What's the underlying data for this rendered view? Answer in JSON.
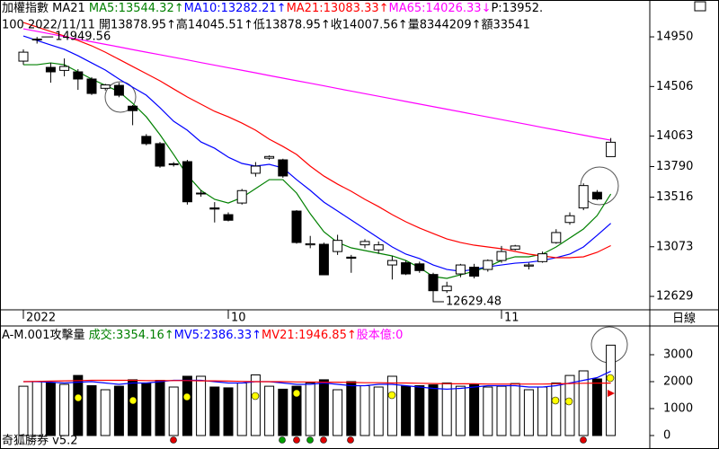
{
  "chart_data": [
    {
      "type": "candlestick",
      "header": [
        {
          "text": "加權指數 MA21 ",
          "color": "#000000"
        },
        {
          "text": "MA5:13544.32↑",
          "color": "#008000"
        },
        {
          "text": "MA10:13282.21↑",
          "color": "#0000ff"
        },
        {
          "text": "MA21:13083.33↑",
          "color": "#ff0000"
        },
        {
          "text": "MA65:14026.33↓",
          "color": "#ff00ff"
        },
        {
          "text": "P:13952.",
          "color": "#000000"
        }
      ],
      "subheader": "100 2022/11/11 開13878.95↑高14045.51↑低13878.95↑收14007.56↑量8344209↑額33541",
      "period_label": "日線",
      "categories": [
        "2022",
        null,
        null,
        null,
        null,
        null,
        null,
        null,
        null,
        null,
        null,
        null,
        null,
        null,
        null,
        "10",
        null,
        null,
        null,
        null,
        null,
        null,
        null,
        null,
        null,
        null,
        null,
        null,
        null,
        null,
        null,
        null,
        null,
        null,
        null,
        "11",
        null,
        null,
        null,
        null,
        null,
        null,
        null,
        null
      ],
      "open": [
        14733,
        14925,
        14677,
        14650,
        14637,
        14573,
        14490,
        14516,
        14330,
        14060,
        13995,
        13810,
        13834,
        13550,
        13420,
        13360,
        13464,
        13730,
        13865,
        13850,
        13392,
        13090,
        13095,
        13030,
        12980,
        13090,
        13045,
        12910,
        12930,
        12920,
        12825,
        12680,
        12830,
        12890,
        12870,
        12950,
        13050,
        12900,
        12940,
        13110,
        13290,
        13420,
        13560,
        13878.95
      ],
      "high": [
        14838,
        14949.56,
        14717,
        14757,
        14661,
        14590,
        14530,
        14540,
        14340,
        14080,
        14010,
        13830,
        13850,
        13580,
        13472,
        13380,
        13590,
        13830,
        13890,
        13860,
        13400,
        13170,
        13110,
        13180,
        13000,
        13140,
        13120,
        12990,
        12950,
        12940,
        12840,
        12760,
        12920,
        12920,
        12960,
        13080,
        13090,
        12930,
        13030,
        13230,
        13380,
        13640,
        13580,
        14045.51
      ],
      "low": [
        14701,
        14890,
        14540,
        14597,
        14476,
        14430,
        14470,
        14410,
        14160,
        13980,
        13780,
        13790,
        13450,
        13520,
        13290,
        13300,
        13450,
        13700,
        13850,
        13690,
        13100,
        13060,
        12820,
        13000,
        12840,
        13060,
        13010,
        12780,
        12820,
        12840,
        12629.48,
        12660,
        12800,
        12790,
        12850,
        12930,
        13040,
        12870,
        12930,
        13100,
        13270,
        13400,
        13490,
        13878.95
      ],
      "close": [
        14813,
        14930,
        14637,
        14685,
        14573,
        14444,
        14520,
        14428,
        14290,
        13995,
        13794,
        13815,
        13475,
        13553,
        13410,
        13310,
        13575,
        13794,
        13880,
        13706,
        13111,
        13100,
        12822,
        13130,
        12970,
        13120,
        13090,
        12950,
        12830,
        12860,
        12680,
        12720,
        12910,
        12810,
        12950,
        13030,
        13080,
        12910,
        13010,
        13200,
        13350,
        13620,
        13500,
        14007.56
      ],
      "up_color": "#ffffff",
      "down_color": "#000000",
      "series": [
        {
          "color": "#008000",
          "values": [
            14701,
            14701,
            14717,
            14701,
            14637,
            14573,
            14516,
            14460,
            14356,
            14235,
            14075,
            13898,
            13713,
            13577,
            13497,
            13464,
            13513,
            13593,
            13673,
            13673,
            13553,
            13368,
            13207,
            13111,
            13063,
            13039,
            13015,
            12991,
            12950,
            12886,
            12806,
            12790,
            12822,
            12854,
            12894,
            12950,
            12983,
            12983,
            13007,
            13071,
            13151,
            13232,
            13352,
            13544.32
          ]
        },
        {
          "color": "#0000ff",
          "values": [
            14958,
            14918,
            14878,
            14838,
            14781,
            14717,
            14653,
            14573,
            14500,
            14428,
            14316,
            14195,
            14115,
            14010,
            13954,
            13874,
            13818,
            13794,
            13810,
            13778,
            13673,
            13577,
            13472,
            13392,
            13312,
            13232,
            13151,
            13071,
            13007,
            12967,
            12910,
            12870,
            12854,
            12870,
            12894,
            12910,
            12926,
            12934,
            12950,
            12975,
            13007,
            13071,
            13175,
            13282.21
          ]
        },
        {
          "color": "#ff0000",
          "values": [
            15078,
            15038,
            14998,
            14958,
            14918,
            14870,
            14813,
            14749,
            14685,
            14621,
            14557,
            14484,
            14412,
            14348,
            14284,
            14235,
            14179,
            14115,
            14035,
            13970,
            13898,
            13794,
            13705,
            13633,
            13569,
            13497,
            13432,
            13360,
            13296,
            13240,
            13191,
            13143,
            13111,
            13087,
            13071,
            13055,
            13031,
            13007,
            12991,
            12975,
            12975,
            12983,
            13023,
            13083.33
          ]
        },
        {
          "color": "#ff00ff",
          "values": [
            15022,
            14999,
            14976,
            14952,
            14929,
            14906,
            14883,
            14860,
            14836,
            14813,
            14790,
            14767,
            14744,
            14720,
            14697,
            14674,
            14651,
            14628,
            14604,
            14581,
            14558,
            14535,
            14512,
            14488,
            14465,
            14442,
            14419,
            14396,
            14372,
            14349,
            14326,
            14303,
            14280,
            14256,
            14233,
            14210,
            14187,
            14164,
            14140,
            14117,
            14094,
            14071,
            14048,
            14026.33
          ]
        }
      ],
      "annotations": [
        "14949.56",
        "12629.48"
      ],
      "ylim": [
        12509,
        15119
      ],
      "yticks": [
        14950,
        14506,
        14063,
        13790,
        13516,
        13073,
        12629
      ]
    },
    {
      "type": "bar",
      "header": [
        {
          "text": "A-M.001攻擊量 ",
          "color": "#000000"
        },
        {
          "text": "成交:3354.16↑",
          "color": "#008000"
        },
        {
          "text": "MV5:2386.33↑",
          "color": "#0000ff"
        },
        {
          "text": "MV21:1946.85↑",
          "color": "#ff0000"
        },
        {
          "text": "股本億:0",
          "color": "#ff00ff"
        }
      ],
      "values": [
        1830,
        2000,
        1950,
        1900,
        2230,
        1850,
        1700,
        1830,
        2070,
        1950,
        2050,
        1800,
        2200,
        2200,
        1800,
        1770,
        1950,
        2250,
        1830,
        1720,
        1830,
        1950,
        2070,
        1700,
        2000,
        1850,
        1800,
        2200,
        1830,
        1850,
        1880,
        1950,
        1830,
        1900,
        1800,
        1830,
        1930,
        1700,
        1800,
        1950,
        2230,
        2400,
        2100,
        3354.16
      ],
      "series": [
        {
          "color": "#0000ff",
          "values": [
            2000,
            2000,
            1980,
            1950,
            1980,
            2000,
            1950,
            1900,
            1950,
            1950,
            2000,
            2050,
            2050,
            2050,
            2000,
            1950,
            1950,
            2000,
            2000,
            1950,
            1900,
            1900,
            1950,
            1900,
            1850,
            1850,
            1900,
            1900,
            1850,
            1800,
            1750,
            1720,
            1750,
            1800,
            1850,
            1850,
            1850,
            1800,
            1800,
            1850,
            1950,
            2050,
            2150,
            2386.33
          ]
        },
        {
          "color": "#ff0000",
          "values": [
            2000,
            2010,
            2020,
            2030,
            2040,
            2050,
            2050,
            2050,
            2050,
            2040,
            2040,
            2040,
            2040,
            2030,
            2030,
            2020,
            2010,
            2000,
            2000,
            2000,
            1990,
            1990,
            1980,
            1980,
            1970,
            1960,
            1960,
            1950,
            1950,
            1940,
            1930,
            1920,
            1920,
            1920,
            1910,
            1910,
            1910,
            1910,
            1910,
            1920,
            1930,
            1940,
            1945,
            1946.85
          ]
        }
      ],
      "ylim": [
        -433,
        3433
      ],
      "yticks": [
        0,
        1000,
        2000,
        3000
      ]
    }
  ],
  "footer": "奇狐勝券 v5.2"
}
